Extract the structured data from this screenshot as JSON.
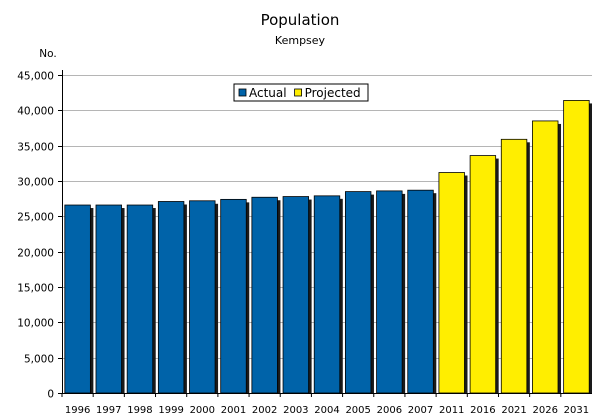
{
  "chart_data": {
    "type": "bar",
    "title": "Population",
    "subtitle": "Kempsey",
    "ylabel": "No.",
    "xlabel": "",
    "ylim": [
      0,
      45000
    ],
    "ytick_step": 5000,
    "ytick_labels": [
      "0",
      "5,000",
      "10,000",
      "15,000",
      "20,000",
      "25,000",
      "30,000",
      "35,000",
      "40,000",
      "45,000"
    ],
    "grid": true,
    "legend_position": "top-center",
    "categories": [
      "1996",
      "1997",
      "1998",
      "1999",
      "2000",
      "2001",
      "2002",
      "2003",
      "2004",
      "2005",
      "2006",
      "2007",
      "2011",
      "2016",
      "2021",
      "2026",
      "2031"
    ],
    "series": [
      {
        "name": "Actual",
        "color": "#0063a9",
        "values": [
          26600,
          26600,
          26600,
          27100,
          27200,
          27400,
          27700,
          27800,
          27900,
          28500,
          28600,
          28700,
          null,
          null,
          null,
          null,
          null
        ]
      },
      {
        "name": "Projected",
        "color": "#ffee00",
        "values": [
          null,
          null,
          null,
          null,
          null,
          null,
          null,
          null,
          null,
          null,
          null,
          null,
          31200,
          33600,
          35900,
          38500,
          41400
        ]
      }
    ]
  }
}
